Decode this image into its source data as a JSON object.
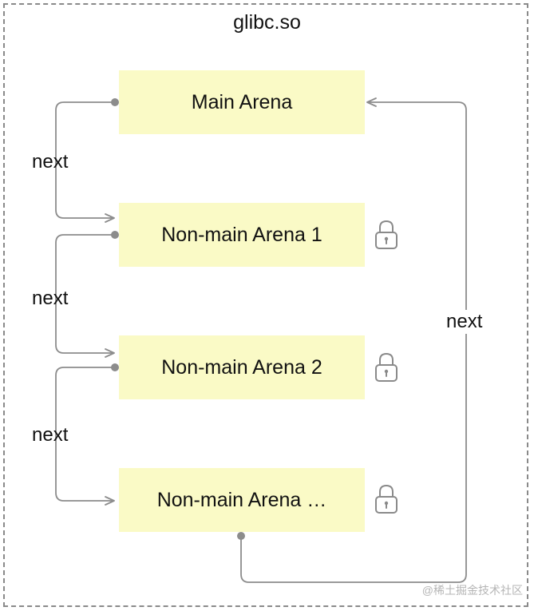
{
  "container": {
    "title": "glibc.so"
  },
  "arenas": [
    {
      "label": "Main Arena",
      "locked": false
    },
    {
      "label": "Non-main Arena 1",
      "locked": true
    },
    {
      "label": "Non-main Arena 2",
      "locked": true
    },
    {
      "label": "Non-main Arena …",
      "locked": true
    }
  ],
  "links": {
    "next_label": "next",
    "left_links": [
      {
        "from": "Main Arena",
        "to": "Non-main Arena 1",
        "label": "next"
      },
      {
        "from": "Non-main Arena 1",
        "to": "Non-main Arena 2",
        "label": "next"
      },
      {
        "from": "Non-main Arena 2",
        "to": "Non-main Arena …",
        "label": "next"
      }
    ],
    "return_link": {
      "from": "Non-main Arena …",
      "to": "Main Arena",
      "label": "next"
    }
  },
  "colors": {
    "arena_fill": "#fafac6",
    "connector": "#8c8c8c",
    "dashed_border": "#8a8a8a"
  },
  "icons": {
    "arena_lock": "lock-icon"
  },
  "watermark": "@稀土掘金技术社区"
}
